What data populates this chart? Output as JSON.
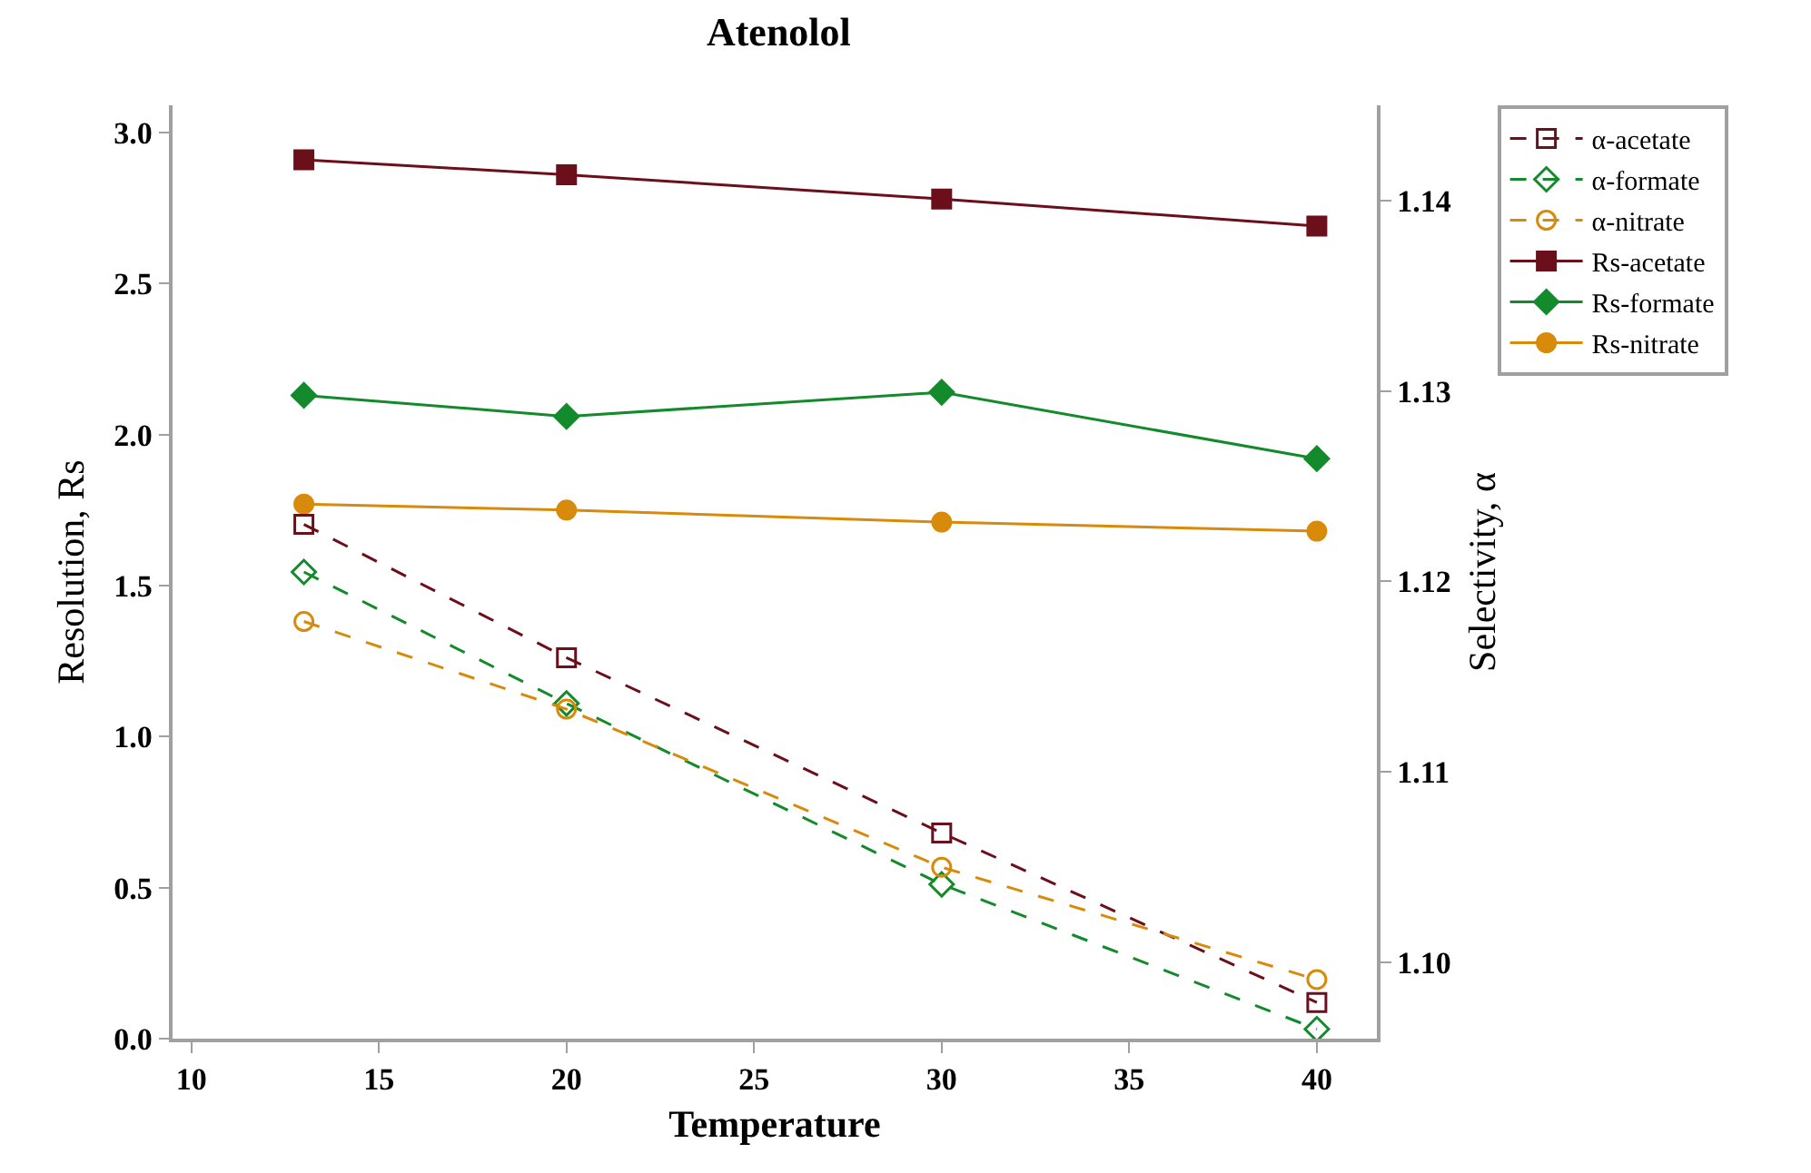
{
  "chart_data": {
    "type": "line",
    "title": "Atenolol",
    "xlabel": "Temperature",
    "ylabel": "Resolution, Rs",
    "y2label": "Selectivity, α",
    "x": [
      13,
      20,
      30,
      40
    ],
    "xlim": [
      9.5,
      41.6
    ],
    "xticks": [
      10,
      15,
      20,
      25,
      30,
      35,
      40
    ],
    "ylim": [
      0,
      3.09
    ],
    "yticks": [
      {
        "value": 0,
        "label": "0.0"
      },
      0.5,
      {
        "value": 1,
        "label": "1.0"
      },
      1.5,
      {
        "value": 2,
        "label": "2.0"
      },
      2.5,
      {
        "value": 3,
        "label": "3.0"
      }
    ],
    "y2lim": [
      1.096,
      1.145
    ],
    "y2ticks": [
      {
        "value": 1.1,
        "label": "1.10"
      },
      1.11,
      1.12,
      1.13,
      1.14
    ],
    "legend": "top right",
    "series": [
      {
        "name": "α-acetate",
        "color": "#6b0f1a",
        "axis": "y2",
        "marker": "square-open",
        "line_style": "dashed",
        "values": [
          1.123,
          1.116,
          1.1068,
          1.0979
        ]
      },
      {
        "name": "α-formate",
        "color": "#138a2b",
        "axis": "y2",
        "marker": "diamond-open",
        "line_style": "dashed",
        "values": [
          1.1205,
          1.1136,
          1.1041,
          1.0965
        ]
      },
      {
        "name": "α-nitrate",
        "color": "#d88a0a",
        "axis": "y2",
        "marker": "circle-open",
        "line_style": "dashed",
        "values": [
          1.1179,
          1.1133,
          1.105,
          1.0991
        ]
      },
      {
        "name": "Rs-acetate",
        "color": "#6b0f1a",
        "marker": "square",
        "line_style": "solid",
        "values": [
          2.91,
          2.86,
          2.78,
          2.69
        ]
      },
      {
        "name": "Rs-formate",
        "color": "#138a2b",
        "marker": "diamond",
        "line_style": "solid",
        "values": [
          2.13,
          2.06,
          2.14,
          1.92
        ]
      },
      {
        "name": "Rs-nitrate",
        "color": "#d88a0a",
        "marker": "circle",
        "line_style": "solid",
        "values": [
          1.77,
          1.75,
          1.71,
          1.68
        ]
      }
    ]
  }
}
